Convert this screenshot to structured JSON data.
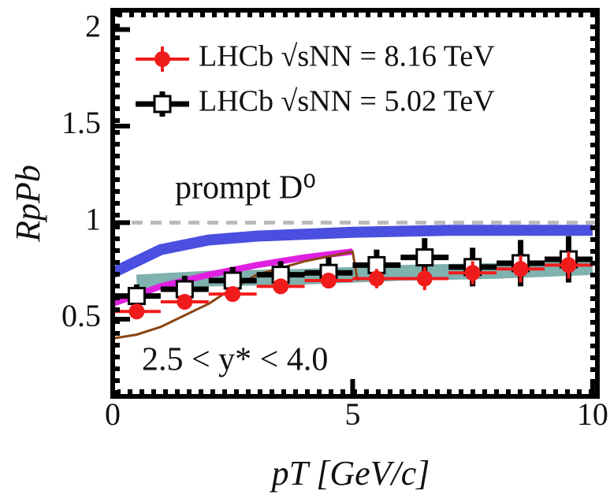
{
  "chart_data": {
    "type": "errorbar",
    "xlabel": "pT [GeV/c]",
    "ylabel": "RpPb",
    "xlim": [
      0,
      10.1
    ],
    "ylim": [
      0.1,
      2.1
    ],
    "xticks": [
      0,
      5,
      10
    ],
    "yticks": [
      0.5,
      1,
      1.5,
      2
    ],
    "reference_line": 1,
    "annotations": [
      "prompt  D⁰",
      "2.5 <  y* < 4.0"
    ],
    "series": [
      {
        "name": "LHCb  √sNN = 8.16 TeV",
        "color": "#f01c1c",
        "marker": "circle",
        "x": [
          0.5,
          1.5,
          2.5,
          3.5,
          4.5,
          5.5,
          6.5,
          7.5,
          8.5,
          9.5
        ],
        "values": [
          0.54,
          0.59,
          0.63,
          0.67,
          0.7,
          0.71,
          0.71,
          0.74,
          0.76,
          0.78
        ],
        "errors": [
          0.04,
          0.04,
          0.04,
          0.04,
          0.04,
          0.05,
          0.06,
          0.06,
          0.07,
          0.07
        ],
        "xerrors": [
          0.5,
          0.5,
          0.5,
          0.5,
          0.5,
          0.5,
          0.5,
          0.5,
          0.5,
          0.5
        ]
      },
      {
        "name": "LHCb  √sNN = 5.02 TeV",
        "color": "#000000",
        "marker": "square",
        "x": [
          0.5,
          1.5,
          2.5,
          3.5,
          4.5,
          5.5,
          6.5,
          7.5,
          8.5,
          9.5
        ],
        "values": [
          0.62,
          0.655,
          0.7,
          0.73,
          0.74,
          0.78,
          0.82,
          0.77,
          0.79,
          0.81
        ],
        "errors": [
          0.06,
          0.07,
          0.07,
          0.07,
          0.08,
          0.08,
          0.1,
          0.1,
          0.12,
          0.12
        ],
        "xerrors": [
          0.5,
          0.5,
          0.5,
          0.5,
          0.5,
          0.5,
          0.5,
          0.5,
          0.5,
          0.5
        ]
      }
    ],
    "curves": [
      {
        "color": "#2a7f7a",
        "x": [
          0.5,
          2,
          4,
          6,
          8,
          10
        ],
        "values": [
          0.69,
          0.71,
          0.72,
          0.74,
          0.75,
          0.77
        ]
      },
      {
        "color": "#4a4fe0",
        "x": [
          0,
          1,
          2,
          3,
          4,
          5,
          6,
          7,
          8,
          9,
          10
        ],
        "values": [
          0.74,
          0.86,
          0.91,
          0.93,
          0.94,
          0.95,
          0.955,
          0.96,
          0.96,
          0.96,
          0.96
        ]
      },
      {
        "color": "#e020e0",
        "x": [
          0,
          1,
          2,
          3,
          4,
          5
        ],
        "values": [
          0.58,
          0.67,
          0.73,
          0.78,
          0.82,
          0.85
        ]
      },
      {
        "color": "#8b4513",
        "x": [
          0,
          0.5,
          1,
          1.5,
          2,
          2.5,
          3,
          4,
          5,
          5.1
        ],
        "values": [
          0.4,
          0.42,
          0.46,
          0.52,
          0.58,
          0.66,
          0.73,
          0.8,
          0.85,
          0.7
        ]
      }
    ]
  }
}
